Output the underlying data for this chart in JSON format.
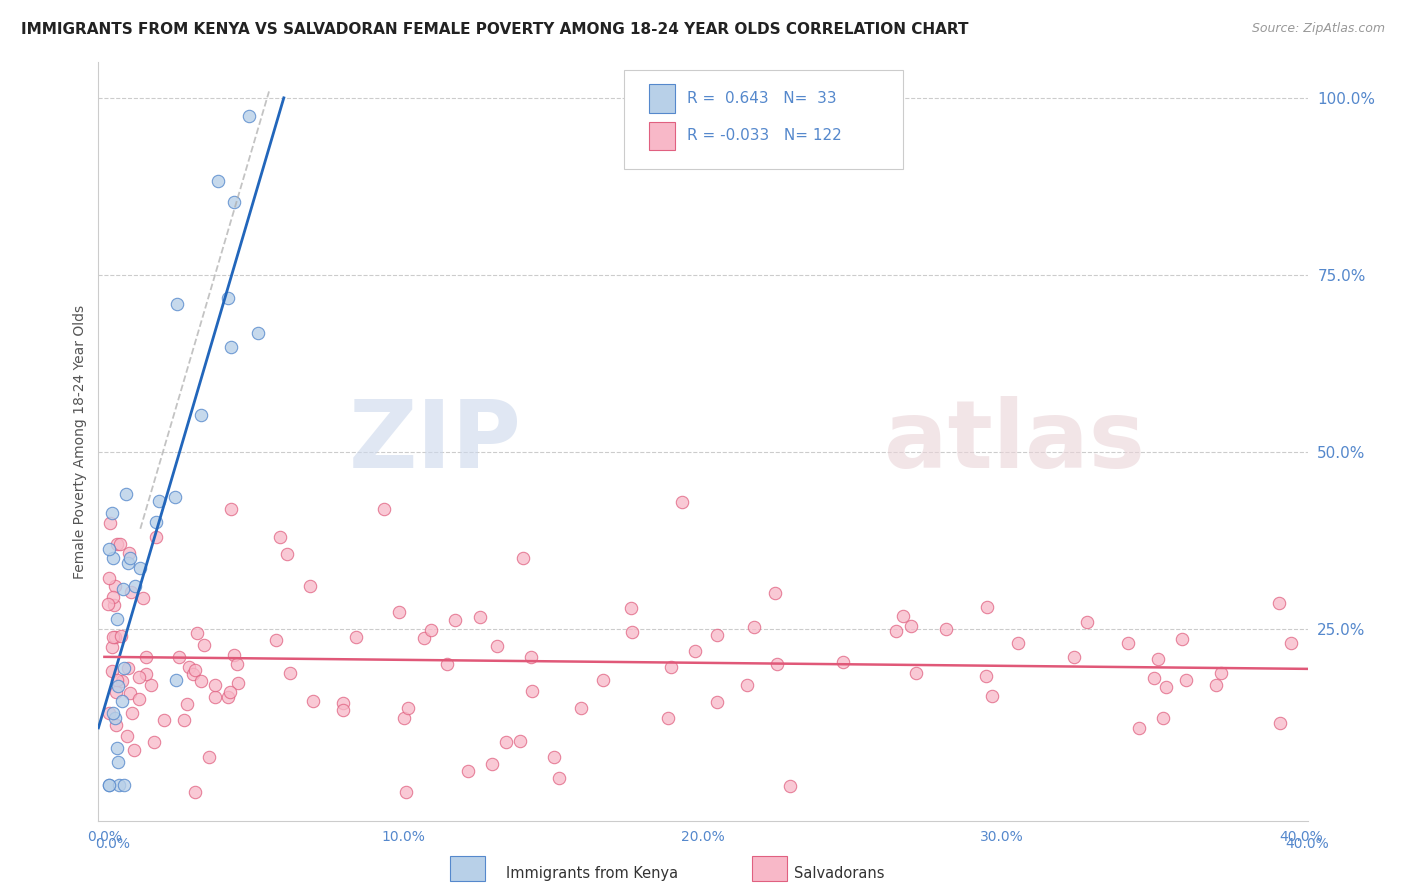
{
  "title": "IMMIGRANTS FROM KENYA VS SALVADORAN FEMALE POVERTY AMONG 18-24 YEAR OLDS CORRELATION CHART",
  "source": "Source: ZipAtlas.com",
  "ylabel": "Female Poverty Among 18-24 Year Olds",
  "r_kenya": 0.643,
  "n_kenya": 33,
  "r_salv": -0.033,
  "n_salv": 122,
  "kenya_fill": "#b8d0e8",
  "kenya_edge": "#5588cc",
  "kenya_line": "#2266bb",
  "salv_fill": "#f8b8c8",
  "salv_edge": "#e06080",
  "salv_line": "#e05878",
  "background_color": "#ffffff",
  "grid_color": "#cccccc",
  "ytick_color": "#5588cc",
  "xtick_color": "#5588cc",
  "legend_border": "#cccccc",
  "legend_text_color": "#5588cc"
}
